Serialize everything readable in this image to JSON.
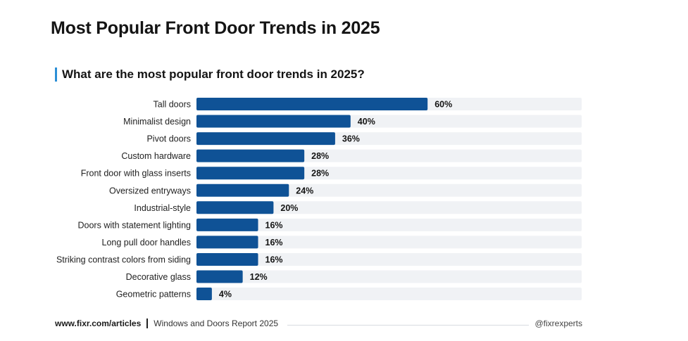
{
  "header": {
    "title": "Most Popular Front Door Trends in 2025",
    "subtitle": "What are the most popular front door trends in 2025?"
  },
  "colors": {
    "bar": "#0f5296",
    "track": "#f0f2f5",
    "accent": "#2c8fd6"
  },
  "chart_data": {
    "type": "bar",
    "orientation": "horizontal",
    "categories": [
      "Tall doors",
      "Minimalist design",
      "Pivot doors",
      "Custom hardware",
      "Front door with glass inserts",
      "Oversized entryways",
      "Industrial-style",
      "Doors with statement lighting",
      "Long pull door handles",
      "Striking contrast colors from siding",
      "Decorative glass",
      "Geometric patterns"
    ],
    "values": [
      60,
      40,
      36,
      28,
      28,
      24,
      20,
      16,
      16,
      16,
      12,
      4
    ],
    "data_labels": [
      "60%",
      "40%",
      "36%",
      "28%",
      "28%",
      "24%",
      "20%",
      "16%",
      "16%",
      "16%",
      "12%",
      "4%"
    ],
    "xlim": [
      0,
      100
    ],
    "grid": false,
    "legend": "none"
  },
  "footer": {
    "url": "www.fixr.com/articles",
    "report": "Windows and Doors Report 2025",
    "handle": "@fixrexperts"
  }
}
